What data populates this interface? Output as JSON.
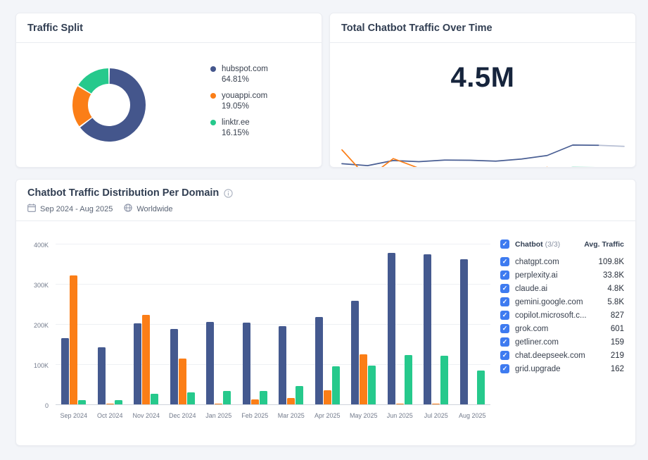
{
  "traffic_split": {
    "title": "Traffic Split",
    "slices": [
      {
        "label": "hubspot.com",
        "pct": "64.81%",
        "value": 64.81,
        "color": "#44568c"
      },
      {
        "label": "youappi.com",
        "pct": "19.05%",
        "value": 19.05,
        "color": "#fb7e17"
      },
      {
        "label": "linktr.ee",
        "pct": "16.15%",
        "value": 16.15,
        "color": "#26c98c"
      }
    ]
  },
  "traffic_over_time": {
    "title": "Total Chatbot Traffic Over Time",
    "total": "4.5M"
  },
  "distribution": {
    "title": "Chatbot Traffic Distribution Per Domain",
    "date_range": "Sep 2024 - Aug 2025",
    "region": "Worldwide",
    "legend": {
      "header": {
        "label": "Chatbot",
        "count": "(3/3)",
        "value_col": "Avg. Traffic"
      },
      "rows": [
        {
          "label": "chatgpt.com",
          "value": "109.8K"
        },
        {
          "label": "perplexity.ai",
          "value": "33.8K"
        },
        {
          "label": "claude.ai",
          "value": "4.8K"
        },
        {
          "label": "gemini.google.com",
          "value": "5.8K"
        },
        {
          "label": "copilot.microsoft.c...",
          "value": "827"
        },
        {
          "label": "grok.com",
          "value": "601"
        },
        {
          "label": "getliner.com",
          "value": "159"
        },
        {
          "label": "chat.deepseek.com",
          "value": "219"
        },
        {
          "label": "grid.upgrade",
          "value": "162"
        }
      ]
    }
  },
  "chart_data": [
    {
      "type": "pie",
      "title": "Traffic Split",
      "donut": true,
      "labels": [
        "hubspot.com",
        "youappi.com",
        "linktr.ee"
      ],
      "values": [
        64.81,
        19.05,
        16.15
      ],
      "colors": [
        "#44568c",
        "#fb7e17",
        "#26c98c"
      ],
      "legend_position": "right"
    },
    {
      "type": "line",
      "title": "Total Chatbot Traffic Over Time",
      "annotation": "4.5M",
      "x": [
        "Sep 2024",
        "Oct 2024",
        "Nov 2024",
        "Dec 2024",
        "Jan 2025",
        "Feb 2025",
        "Mar 2025",
        "Apr 2025",
        "May 2025",
        "Jun 2025",
        "Jul 2025",
        "Aug 2025"
      ],
      "ylim": [
        0,
        400000
      ],
      "grid": false,
      "series": [
        {
          "name": "hubspot.com",
          "color": "#4a5f94",
          "tail_faded_from": 10,
          "values": [
            165000,
            143000,
            201000,
            188000,
            206000,
            204000,
            194000,
            218000,
            258000,
            377000,
            374000,
            362000
          ]
        },
        {
          "name": "youappi.com",
          "color": "#fb7e17",
          "tail_faded_from": 9,
          "values": [
            322000,
            1000,
            223000,
            114000,
            1000,
            13000,
            16000,
            36000,
            124000,
            2000,
            2000,
            2000
          ]
        },
        {
          "name": "linktr.ee",
          "color": "#26c98c",
          "tail_faded_from": 10,
          "values": [
            10000,
            11000,
            26000,
            30000,
            34000,
            33000,
            46000,
            94000,
            96000,
            123000,
            121000,
            84000
          ]
        }
      ]
    },
    {
      "type": "bar",
      "title": "Chatbot Traffic Distribution Per Domain",
      "categories": [
        "Sep 2024",
        "Oct 2024",
        "Nov 2024",
        "Dec 2024",
        "Jan 2025",
        "Feb 2025",
        "Mar 2025",
        "Apr 2025",
        "May 2025",
        "Jun 2025",
        "Jul 2025",
        "Aug 2025"
      ],
      "ylim": [
        0,
        400000
      ],
      "yticks": [
        "0",
        "100K",
        "200K",
        "300K",
        "400K"
      ],
      "grid": true,
      "series": [
        {
          "name": "hubspot.com",
          "color": "#44598f",
          "values": [
            165000,
            143000,
            201000,
            188000,
            206000,
            204000,
            194000,
            218000,
            258000,
            377000,
            374000,
            362000
          ]
        },
        {
          "name": "youappi.com",
          "color": "#fb7e17",
          "values": [
            322000,
            1000,
            223000,
            114000,
            1000,
            13000,
            16000,
            36000,
            124000,
            1000,
            1000,
            0
          ]
        },
        {
          "name": "linktr.ee",
          "color": "#26c98c",
          "values": [
            10000,
            11000,
            26000,
            30000,
            34000,
            33000,
            46000,
            94000,
            96000,
            123000,
            121000,
            84000
          ]
        }
      ]
    }
  ]
}
